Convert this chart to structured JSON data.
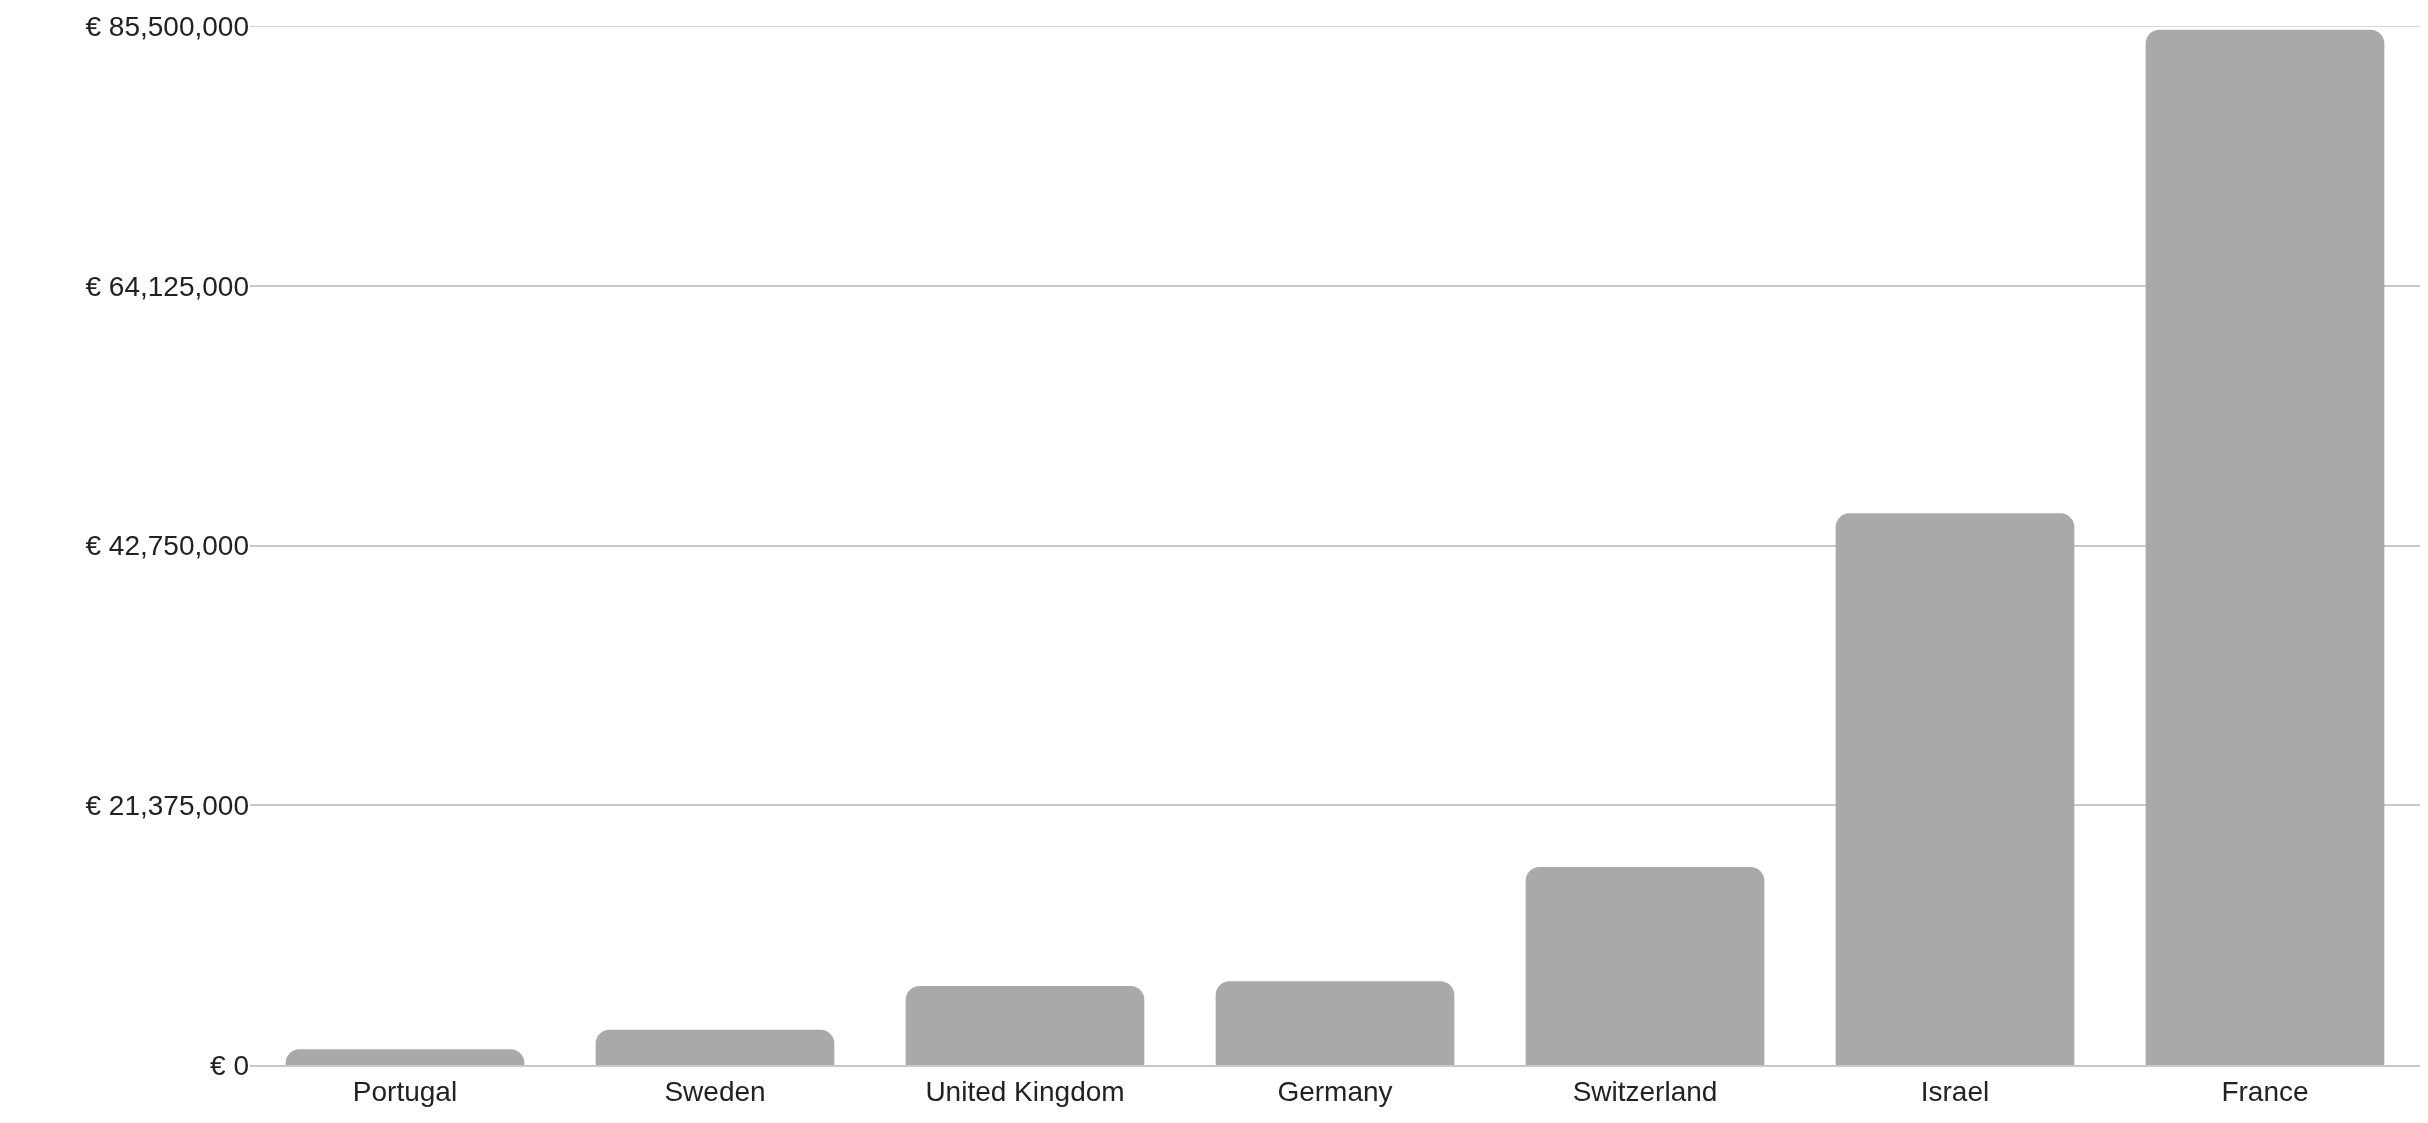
{
  "chart_data": {
    "type": "bar",
    "categories": [
      "Portugal",
      "Sweden",
      "United Kingdom",
      "Germany",
      "Switzerland",
      "Israel",
      "France"
    ],
    "values": [
      1300000,
      2900000,
      6500000,
      6900000,
      16300000,
      45400000,
      85200000
    ],
    "color": "#a9a9a9",
    "ylim": [
      0,
      85500000
    ],
    "yticks": [
      {
        "value": 0,
        "label": "€ 0"
      },
      {
        "value": 21375000,
        "label": "€ 21,375,000"
      },
      {
        "value": 42750000,
        "label": "€ 42,750,000"
      },
      {
        "value": 64125000,
        "label": "€ 64,125,000"
      },
      {
        "value": 85500000,
        "label": "€ 85,500,000"
      }
    ],
    "grid": "y"
  }
}
